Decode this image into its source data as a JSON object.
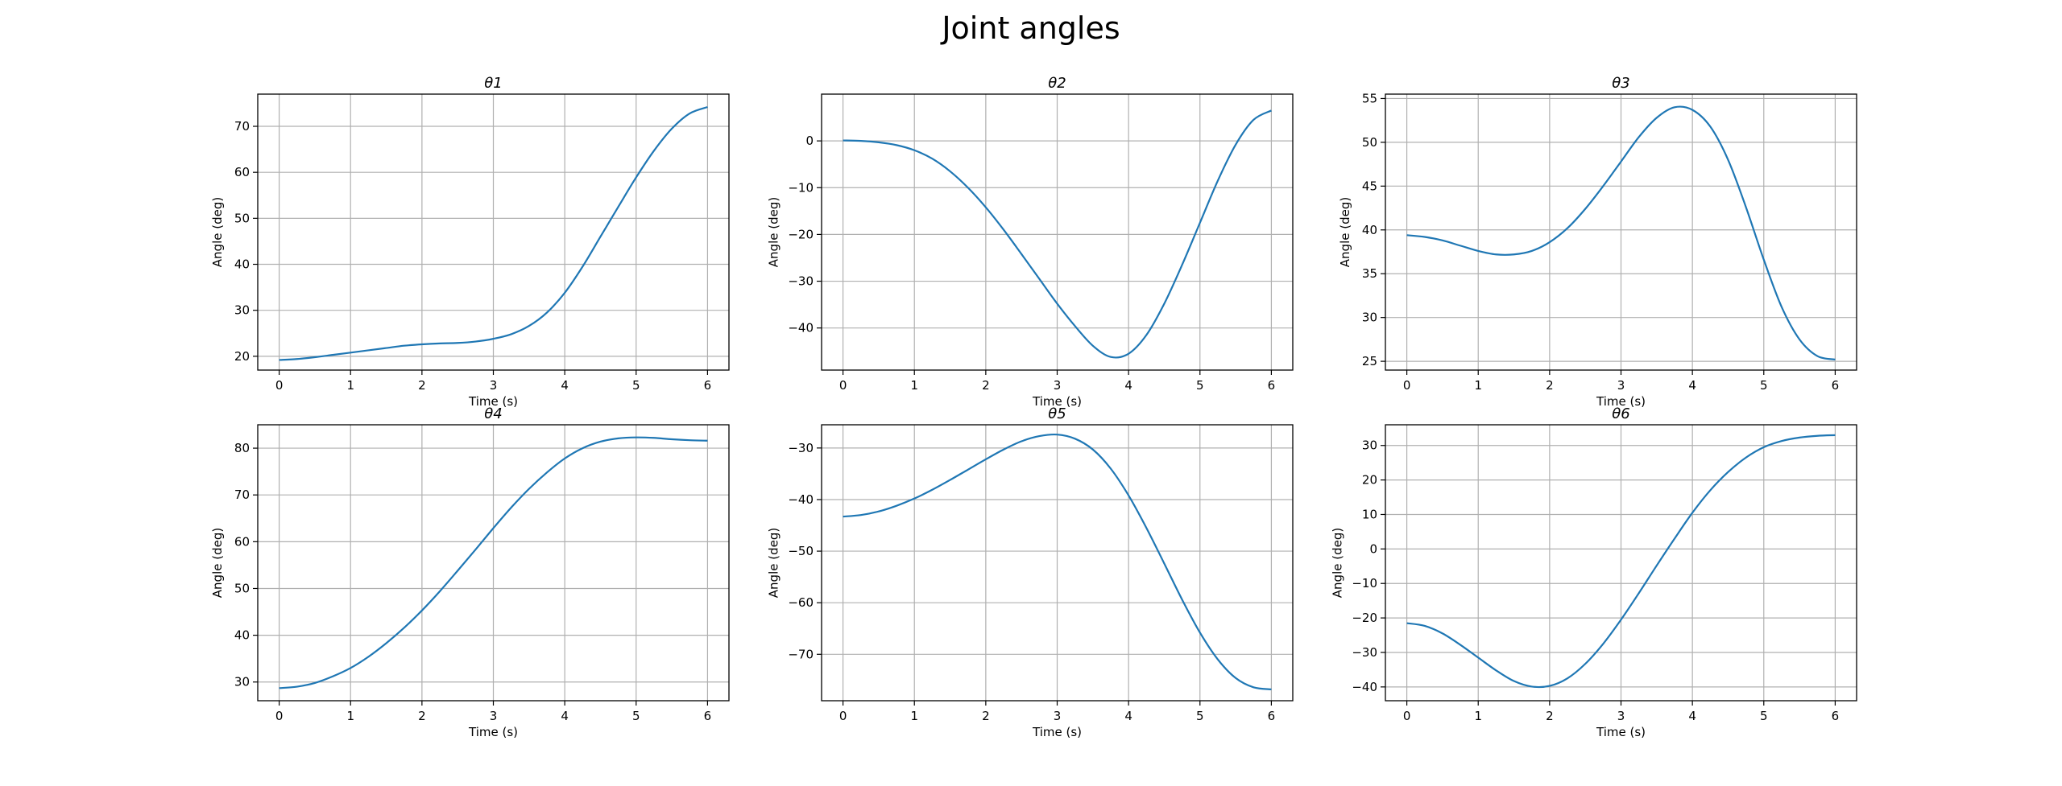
{
  "figure": {
    "title": "Joint angles",
    "line_color": "#1f77b4"
  },
  "chart_data": [
    {
      "type": "line",
      "title": "θ1",
      "xlabel": "Time (s)",
      "ylabel": "Angle (deg)",
      "xlim": [
        -0.3,
        6.3
      ],
      "ylim": [
        17,
        77
      ],
      "xticks": [
        0,
        1,
        2,
        3,
        4,
        5,
        6
      ],
      "yticks": [
        20,
        30,
        40,
        50,
        60,
        70
      ],
      "grid": true,
      "x": [
        0,
        0.25,
        0.5,
        0.75,
        1,
        1.25,
        1.5,
        1.75,
        2,
        2.25,
        2.5,
        2.75,
        3,
        3.25,
        3.5,
        3.75,
        4,
        4.25,
        4.5,
        4.75,
        5,
        5.25,
        5.5,
        5.75,
        6
      ],
      "series": [
        {
          "values": [
            19.2,
            19.4,
            19.8,
            20.3,
            20.8,
            21.3,
            21.8,
            22.3,
            22.6,
            22.8,
            22.9,
            23.2,
            23.8,
            24.8,
            26.6,
            29.5,
            33.8,
            39.5,
            46.0,
            52.5,
            58.9,
            64.7,
            69.5,
            72.8,
            74.2
          ]
        }
      ]
    },
    {
      "type": "line",
      "title": "θ2",
      "xlabel": "Time (s)",
      "ylabel": "Angle (deg)",
      "xlim": [
        -0.3,
        6.3
      ],
      "ylim": [
        -49,
        10
      ],
      "xticks": [
        0,
        1,
        2,
        3,
        4,
        5,
        6
      ],
      "yticks": [
        -40,
        -30,
        -20,
        -10,
        0
      ],
      "grid": true,
      "x": [
        0,
        0.25,
        0.5,
        0.75,
        1,
        1.25,
        1.5,
        1.75,
        2,
        2.25,
        2.5,
        2.75,
        3,
        3.25,
        3.5,
        3.75,
        4,
        4.25,
        4.5,
        4.75,
        5,
        5.25,
        5.5,
        5.75,
        6
      ],
      "series": [
        {
          "values": [
            0.1,
            0.0,
            -0.3,
            -0.9,
            -2.0,
            -3.8,
            -6.5,
            -10.0,
            -14.2,
            -19.0,
            -24.2,
            -29.5,
            -34.8,
            -39.6,
            -43.8,
            -46.2,
            -45.5,
            -41.5,
            -34.8,
            -26.5,
            -17.5,
            -8.5,
            -0.8,
            4.5,
            6.5
          ]
        }
      ]
    },
    {
      "type": "line",
      "title": "θ3",
      "xlabel": "Time (s)",
      "ylabel": "Angle (deg)",
      "xlim": [
        -0.3,
        6.3
      ],
      "ylim": [
        24,
        55.5
      ],
      "xticks": [
        0,
        1,
        2,
        3,
        4,
        5,
        6
      ],
      "yticks": [
        25,
        30,
        35,
        40,
        45,
        50,
        55
      ],
      "grid": true,
      "x": [
        0,
        0.25,
        0.5,
        0.75,
        1,
        1.25,
        1.5,
        1.75,
        2,
        2.25,
        2.5,
        2.75,
        3,
        3.25,
        3.5,
        3.75,
        4,
        4.25,
        4.5,
        4.75,
        5,
        5.25,
        5.5,
        5.75,
        6
      ],
      "series": [
        {
          "values": [
            39.4,
            39.2,
            38.8,
            38.2,
            37.6,
            37.2,
            37.2,
            37.6,
            38.6,
            40.2,
            42.4,
            45.0,
            47.8,
            50.6,
            52.8,
            54.0,
            53.7,
            51.8,
            48.0,
            42.6,
            36.6,
            31.2,
            27.5,
            25.6,
            25.2
          ]
        }
      ]
    },
    {
      "type": "line",
      "title": "θ4",
      "xlabel": "Time (s)",
      "ylabel": "Angle (deg)",
      "xlim": [
        -0.3,
        6.3
      ],
      "ylim": [
        26,
        85
      ],
      "xticks": [
        0,
        1,
        2,
        3,
        4,
        5,
        6
      ],
      "yticks": [
        30,
        40,
        50,
        60,
        70,
        80
      ],
      "grid": true,
      "x": [
        0,
        0.25,
        0.5,
        0.75,
        1,
        1.25,
        1.5,
        1.75,
        2,
        2.25,
        2.5,
        2.75,
        3,
        3.25,
        3.5,
        3.75,
        4,
        4.25,
        4.5,
        4.75,
        5,
        5.25,
        5.5,
        5.75,
        6
      ],
      "series": [
        {
          "values": [
            28.7,
            29.0,
            29.8,
            31.2,
            33.0,
            35.4,
            38.3,
            41.6,
            45.3,
            49.4,
            53.8,
            58.3,
            62.9,
            67.3,
            71.3,
            74.8,
            77.8,
            80.0,
            81.4,
            82.1,
            82.3,
            82.2,
            81.9,
            81.7,
            81.6
          ]
        }
      ]
    },
    {
      "type": "line",
      "title": "θ5",
      "xlabel": "Time (s)",
      "ylabel": "Angle (deg)",
      "xlim": [
        -0.3,
        6.3
      ],
      "ylim": [
        -79,
        -25.5
      ],
      "xticks": [
        0,
        1,
        2,
        3,
        4,
        5,
        6
      ],
      "yticks": [
        -70,
        -60,
        -50,
        -40,
        -30
      ],
      "grid": true,
      "x": [
        0,
        0.25,
        0.5,
        0.75,
        1,
        1.25,
        1.5,
        1.75,
        2,
        2.25,
        2.5,
        2.75,
        3,
        3.25,
        3.5,
        3.75,
        4,
        4.25,
        4.5,
        4.75,
        5,
        5.25,
        5.5,
        5.75,
        6
      ],
      "series": [
        {
          "values": [
            -43.3,
            -43.0,
            -42.3,
            -41.2,
            -39.8,
            -38.1,
            -36.2,
            -34.2,
            -32.2,
            -30.3,
            -28.7,
            -27.7,
            -27.4,
            -28.2,
            -30.3,
            -34.0,
            -39.2,
            -45.5,
            -52.4,
            -59.4,
            -65.8,
            -71.0,
            -74.6,
            -76.4,
            -76.8
          ]
        }
      ]
    },
    {
      "type": "line",
      "title": "θ6",
      "xlabel": "Time (s)",
      "ylabel": "Angle (deg)",
      "xlim": [
        -0.3,
        6.3
      ],
      "ylim": [
        -44,
        36
      ],
      "xticks": [
        0,
        1,
        2,
        3,
        4,
        5,
        6
      ],
      "yticks": [
        -40,
        -30,
        -20,
        -10,
        0,
        10,
        20,
        30
      ],
      "grid": true,
      "x": [
        0,
        0.25,
        0.5,
        0.75,
        1,
        1.25,
        1.5,
        1.75,
        2,
        2.25,
        2.5,
        2.75,
        3,
        3.25,
        3.5,
        3.75,
        4,
        4.25,
        4.5,
        4.75,
        5,
        5.25,
        5.5,
        5.75,
        6
      ],
      "series": [
        {
          "values": [
            -21.5,
            -22.3,
            -24.5,
            -27.8,
            -31.5,
            -35.2,
            -38.3,
            -39.9,
            -39.7,
            -37.5,
            -33.3,
            -27.5,
            -20.5,
            -12.8,
            -4.8,
            3.0,
            10.5,
            17.0,
            22.3,
            26.5,
            29.5,
            31.3,
            32.3,
            32.8,
            33.0
          ]
        }
      ]
    }
  ]
}
